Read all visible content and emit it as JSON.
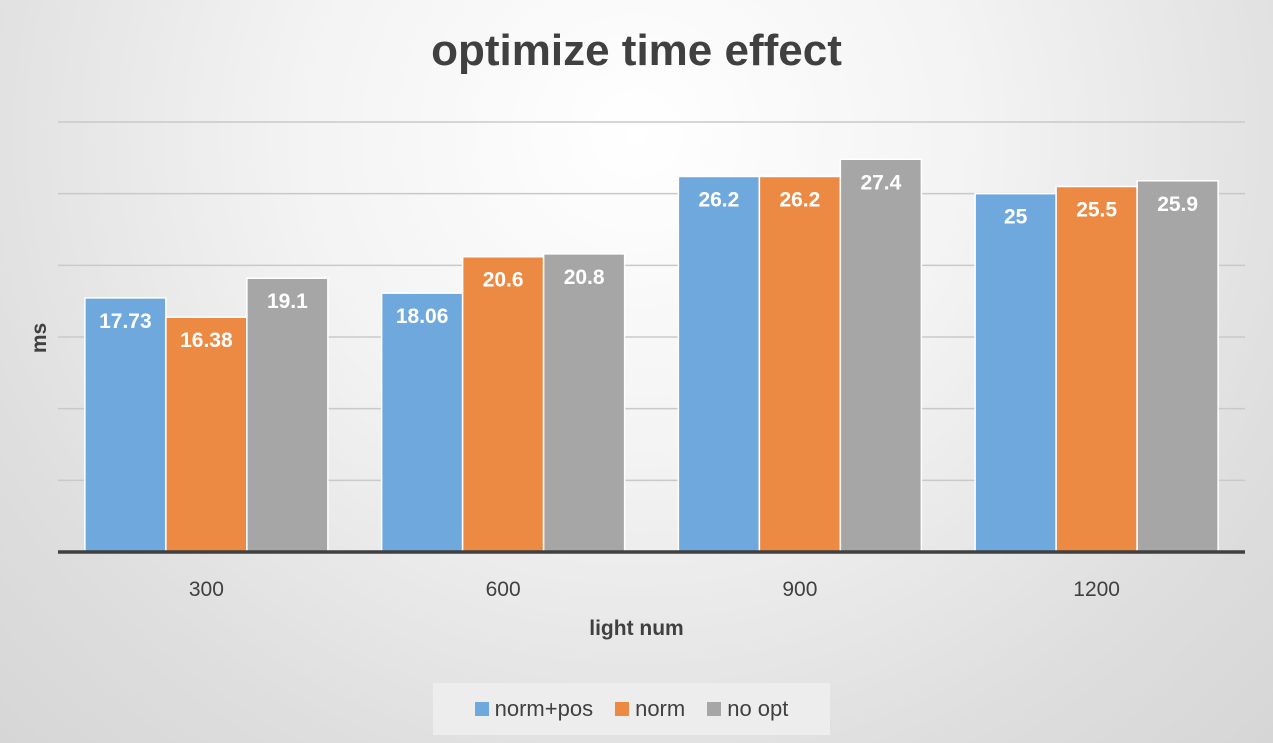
{
  "chart_data": {
    "type": "bar",
    "title": "optimize time effect",
    "xlabel": "light num",
    "ylabel": "ms",
    "categories": [
      "300",
      "600",
      "900",
      "1200"
    ],
    "series": [
      {
        "name": "norm+pos",
        "color": "#6fa8dc",
        "values": [
          17.73,
          18.06,
          26.2,
          25
        ],
        "labels": [
          "17.73",
          "18.06",
          "26.2",
          "25"
        ]
      },
      {
        "name": "norm",
        "color": "#ec8a44",
        "values": [
          16.38,
          20.6,
          26.2,
          25.5
        ],
        "labels": [
          "16.38",
          "20.6",
          "26.2",
          "25.5"
        ]
      },
      {
        "name": "no opt",
        "color": "#a6a6a6",
        "values": [
          19.1,
          20.8,
          27.4,
          25.9
        ],
        "labels": [
          "19.1",
          "20.8",
          "27.4",
          "25.9"
        ]
      }
    ],
    "ylim": [
      0,
      30
    ],
    "grid": true,
    "y_tick_labels_shown": false,
    "legend_position": "bottom"
  }
}
